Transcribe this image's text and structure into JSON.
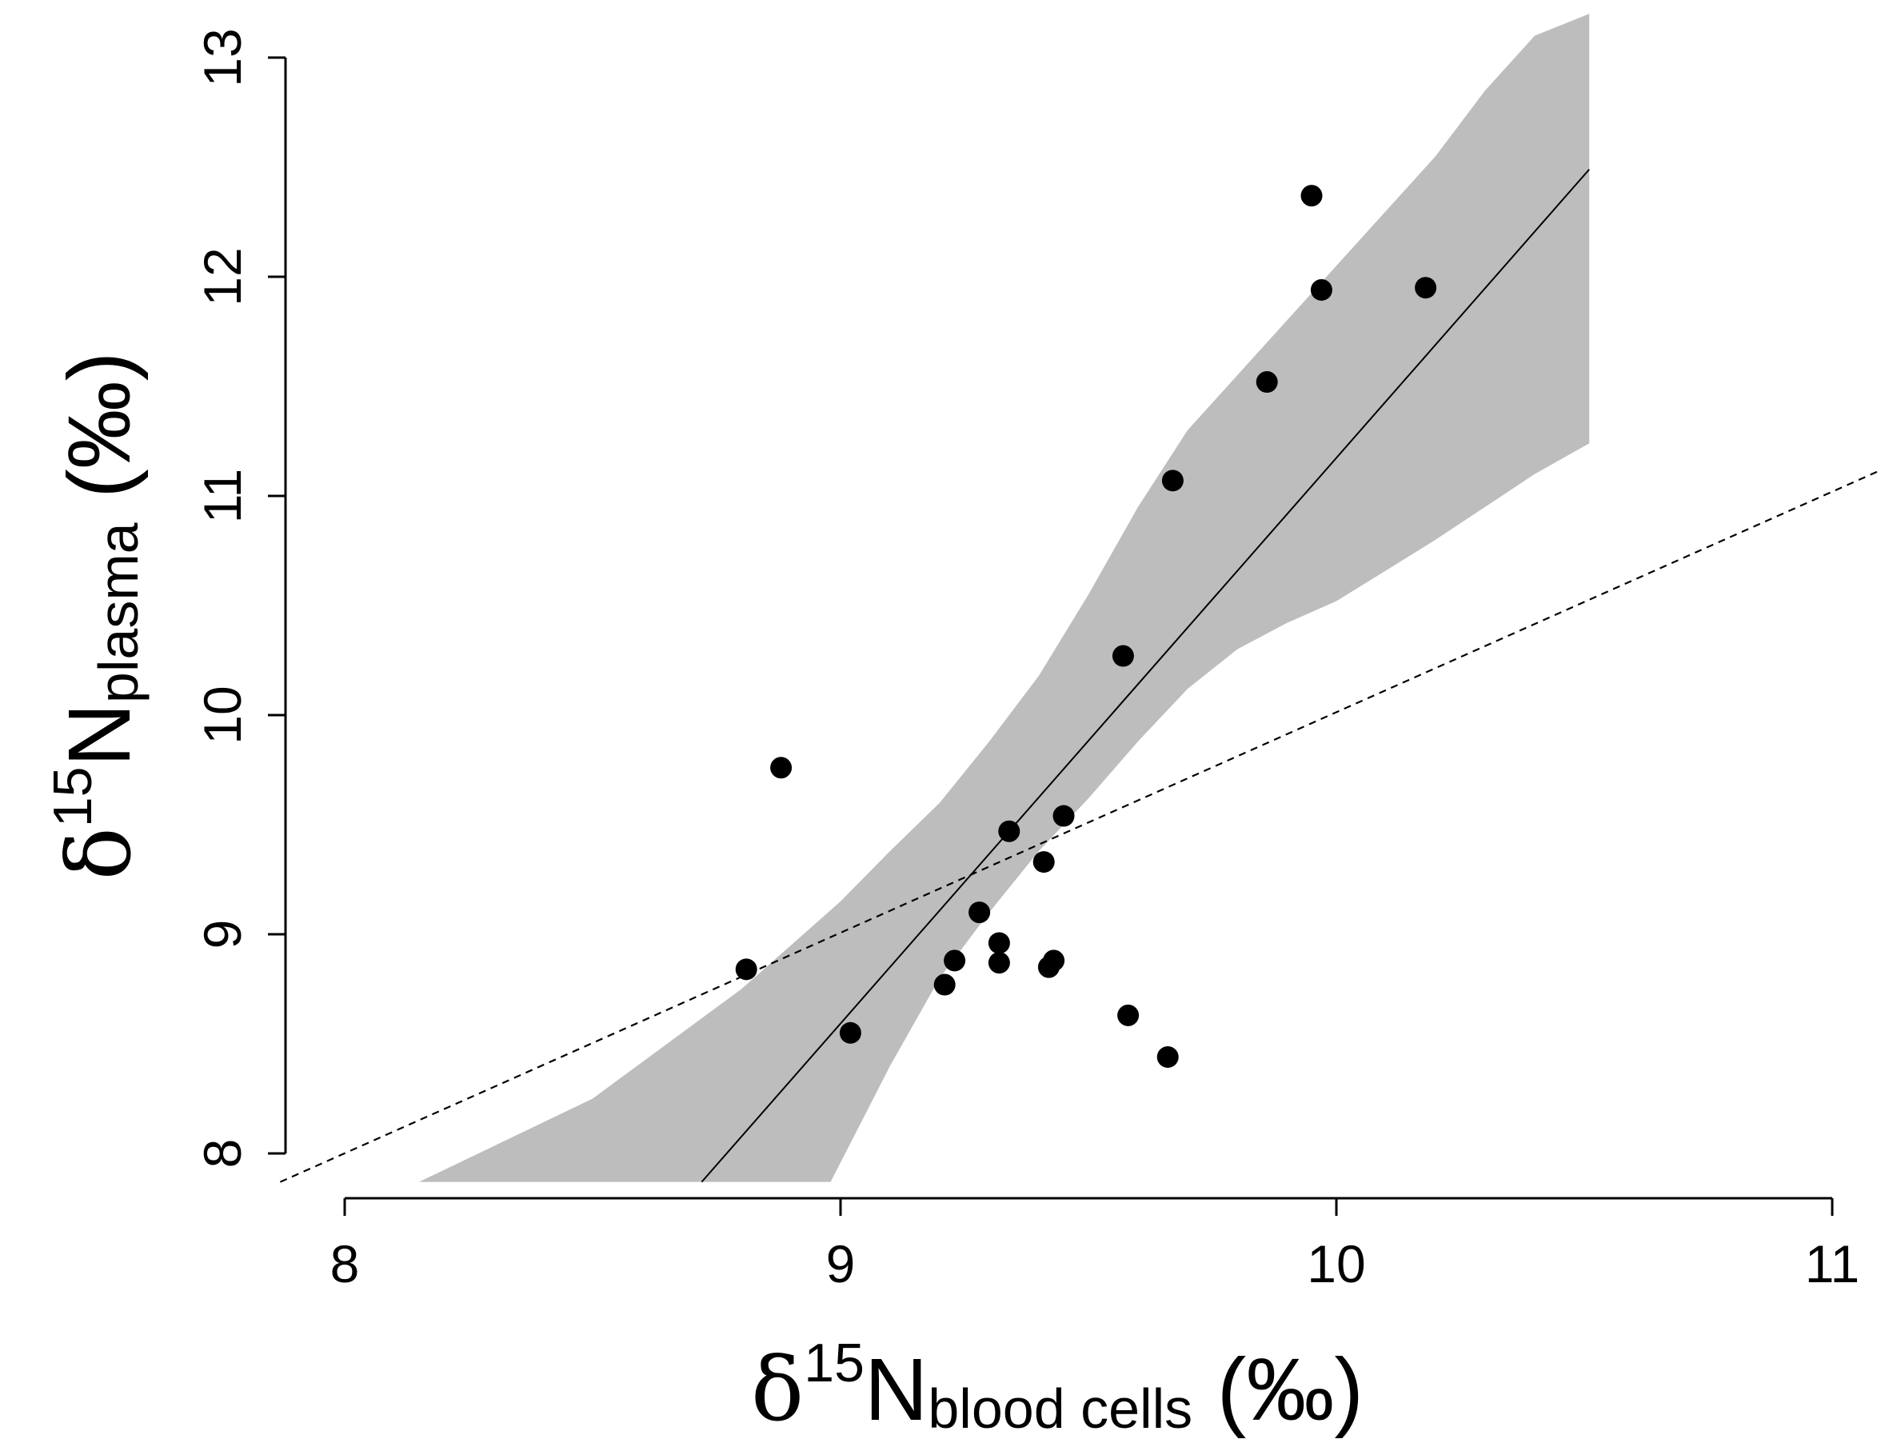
{
  "chart_data": {
    "type": "scatter",
    "title": "",
    "x_axis": {
      "delta": "δ",
      "sup": "15",
      "main": "N",
      "sub": "blood cells",
      "unit": " (‰)",
      "range": [
        7.87,
        11.1
      ],
      "ticks": [
        8,
        9,
        10,
        11
      ],
      "tick_labels": [
        "8",
        "9",
        "10",
        "11"
      ]
    },
    "y_axis": {
      "delta": "δ",
      "sup": "15",
      "main": "N",
      "sub": "plasma",
      "unit": " (‰)",
      "range": [
        7.87,
        13.2
      ],
      "ticks": [
        8,
        9,
        10,
        11,
        12,
        13
      ],
      "tick_labels": [
        "8",
        "9",
        "10",
        "11",
        "12",
        "13"
      ]
    },
    "points": [
      {
        "x": 8.81,
        "y": 8.84
      },
      {
        "x": 8.88,
        "y": 9.76
      },
      {
        "x": 9.02,
        "y": 8.55
      },
      {
        "x": 9.21,
        "y": 8.77
      },
      {
        "x": 9.23,
        "y": 8.88
      },
      {
        "x": 9.28,
        "y": 9.1
      },
      {
        "x": 9.32,
        "y": 8.96
      },
      {
        "x": 9.32,
        "y": 8.87
      },
      {
        "x": 9.34,
        "y": 9.47
      },
      {
        "x": 9.41,
        "y": 9.33
      },
      {
        "x": 9.42,
        "y": 8.85
      },
      {
        "x": 9.43,
        "y": 8.88
      },
      {
        "x": 9.45,
        "y": 9.54
      },
      {
        "x": 9.57,
        "y": 10.27
      },
      {
        "x": 9.58,
        "y": 8.63
      },
      {
        "x": 9.66,
        "y": 8.44
      },
      {
        "x": 9.67,
        "y": 11.07
      },
      {
        "x": 9.86,
        "y": 11.52
      },
      {
        "x": 9.95,
        "y": 12.37
      },
      {
        "x": 9.97,
        "y": 11.94
      },
      {
        "x": 10.18,
        "y": 11.95
      }
    ],
    "regression_line": {
      "style": "solid",
      "x": [
        8.72,
        10.51
      ],
      "y": [
        7.87,
        12.49
      ]
    },
    "reference_line": {
      "style": "dashed",
      "x": [
        7.87,
        11.1
      ],
      "y": [
        7.87,
        11.12
      ]
    },
    "confidence_band": {
      "color": "#bdbdbd",
      "upper": {
        "x": [
          8.15,
          8.5,
          8.8,
          9.0,
          9.1,
          9.2,
          9.3,
          9.4,
          9.5,
          9.6,
          9.7,
          9.8,
          9.9,
          10.0,
          10.1,
          10.2,
          10.3,
          10.4,
          10.51
        ],
        "y": [
          7.87,
          8.25,
          8.75,
          9.15,
          9.38,
          9.6,
          9.88,
          10.18,
          10.55,
          10.95,
          11.3,
          11.55,
          11.8,
          12.05,
          12.3,
          12.55,
          12.85,
          13.1,
          13.2
        ]
      },
      "lower": {
        "x": [
          8.98,
          9.1,
          9.2,
          9.3,
          9.4,
          9.5,
          9.6,
          9.7,
          9.8,
          9.9,
          10.0,
          10.1,
          10.2,
          10.3,
          10.4,
          10.51
        ],
        "y": [
          7.87,
          8.4,
          8.8,
          9.1,
          9.38,
          9.62,
          9.88,
          10.12,
          10.3,
          10.42,
          10.52,
          10.66,
          10.8,
          10.95,
          11.1,
          11.24
        ]
      }
    }
  }
}
